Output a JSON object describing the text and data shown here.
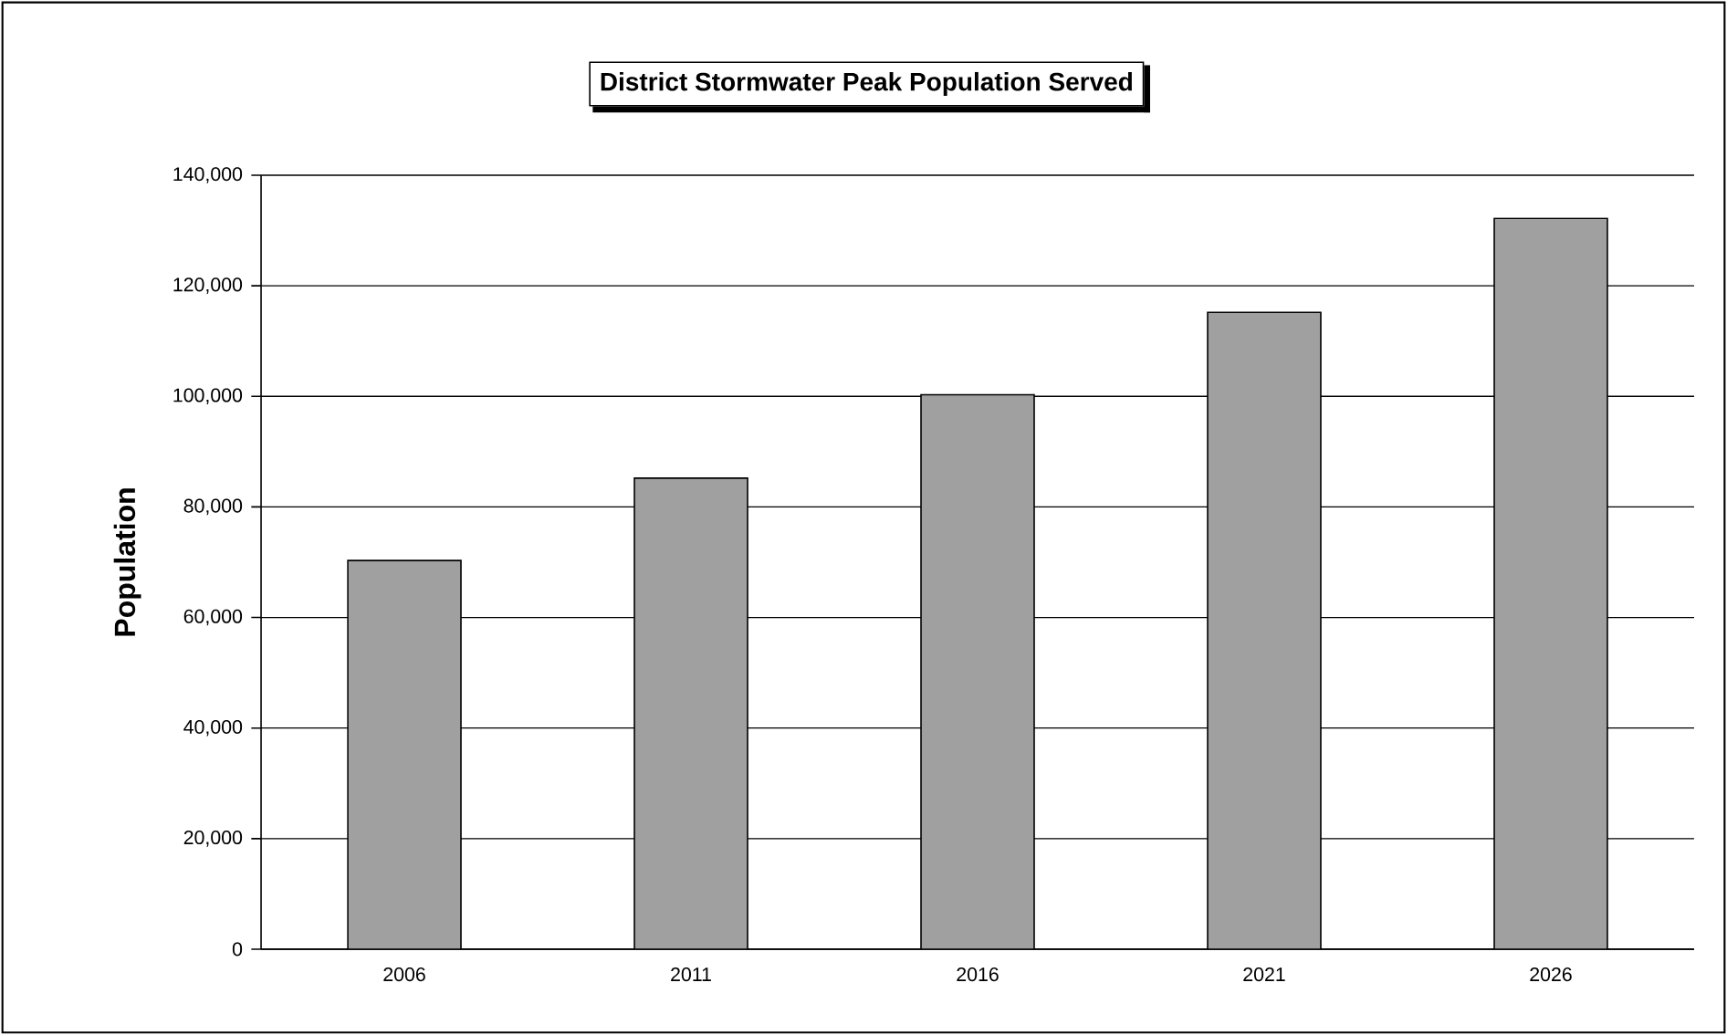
{
  "chart_data": {
    "type": "bar",
    "title": "District Stormwater Peak Population Served",
    "ylabel": "Population",
    "categories": [
      "2006",
      "2011",
      "2016",
      "2021",
      "2026"
    ],
    "values": [
      70300,
      85200,
      100300,
      115200,
      132200
    ],
    "color": "#a0a0a0",
    "ylim": [
      0,
      140000
    ],
    "yticks": [
      {
        "value": 0,
        "label": "0"
      },
      {
        "value": 20000,
        "label": "20,000"
      },
      {
        "value": 40000,
        "label": "40,000"
      },
      {
        "value": 60000,
        "label": "60,000"
      },
      {
        "value": 80000,
        "label": "80,000"
      },
      {
        "value": 100000,
        "label": "100,000"
      },
      {
        "value": 120000,
        "label": "120,000"
      },
      {
        "value": 140000,
        "label": "140,000"
      }
    ],
    "grid": "y"
  }
}
